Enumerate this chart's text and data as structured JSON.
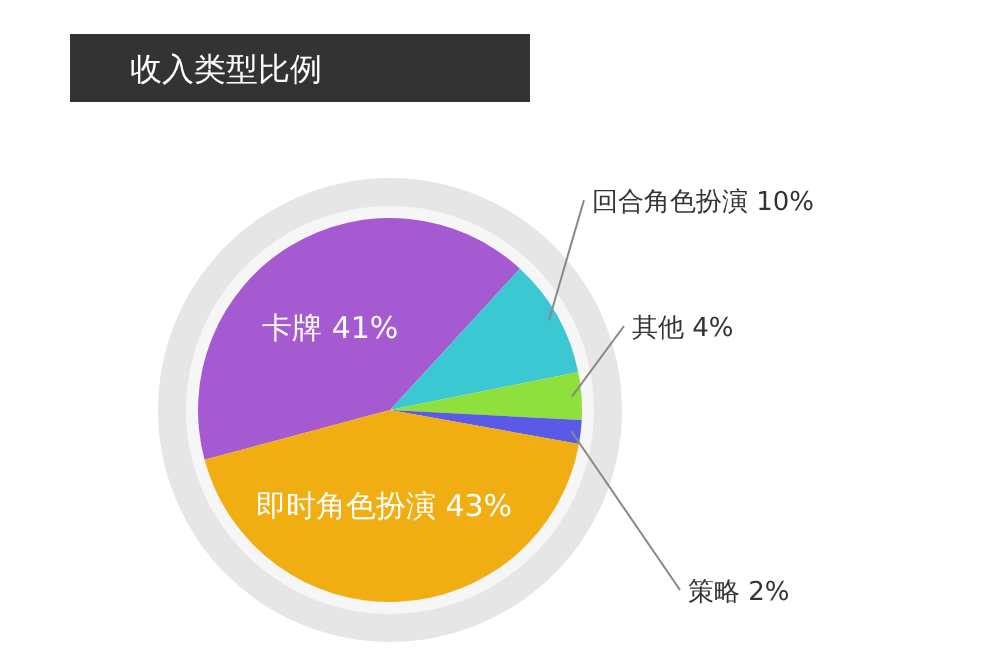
{
  "chart_data": {
    "type": "pie",
    "title": "收入类型比例",
    "categories": [
      "卡牌",
      "回合角色扮演",
      "其他",
      "策略",
      "即时角色扮演"
    ],
    "values": [
      41,
      10,
      4,
      2,
      43
    ],
    "value_labels": [
      "41%",
      "10%",
      "4%",
      "2%",
      "43%"
    ],
    "colors": [
      "#a65ad2",
      "#3cc8d2",
      "#8fe03c",
      "#5a5ae6",
      "#f0ae12"
    ],
    "legend": false
  }
}
